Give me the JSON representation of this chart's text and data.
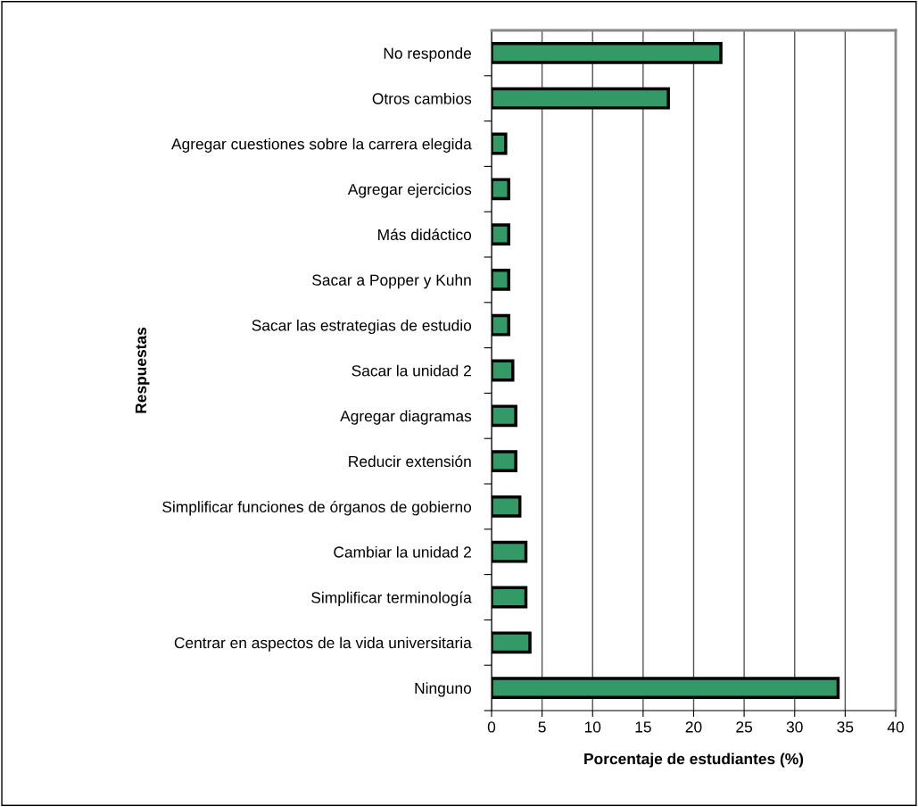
{
  "chart_data": {
    "type": "bar",
    "orientation": "horizontal",
    "xlabel": "Porcentaje de estudiantes (%)",
    "ylabel": "Respuestas",
    "categories": [
      "No responde",
      "Otros cambios",
      "Agregar cuestiones sobre la carrera elegida",
      "Agregar ejercicios",
      "Más didáctico",
      "Sacar a Popper y Kuhn",
      "Sacar las estrategias de estudio",
      "Sacar la unidad 2",
      "Agregar diagramas",
      "Reducir extensión",
      "Simplificar funciones de órganos de gobierno",
      "Cambiar la unidad 2",
      "Simplificar terminología",
      "Centrar en aspectos de la vida universitaria",
      "Ninguno"
    ],
    "values": [
      22.7,
      17.5,
      1.4,
      1.7,
      1.7,
      1.7,
      1.7,
      2.1,
      2.4,
      2.4,
      2.8,
      3.4,
      3.4,
      3.8,
      34.3
    ],
    "color": "#339966",
    "xlim": [
      0,
      40
    ],
    "xticks": [
      0,
      5,
      10,
      15,
      20,
      25,
      30,
      35,
      40
    ],
    "grid": "x",
    "legend": false
  }
}
